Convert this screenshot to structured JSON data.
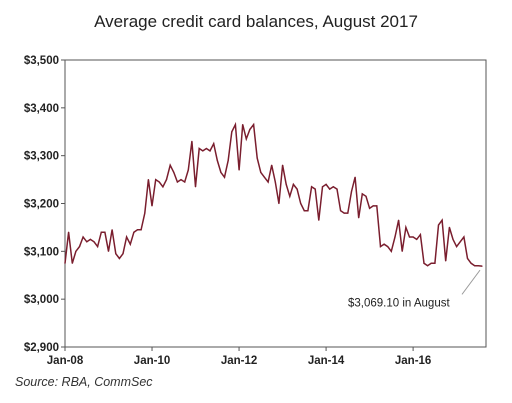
{
  "title": "Average credit card balances, August 2017",
  "source": "Source: RBA, CommSec",
  "chart_data": {
    "type": "line",
    "title": "Average credit card balances, August 2017",
    "xlabel": "",
    "ylabel": "",
    "ylim": [
      2900,
      3500
    ],
    "xlim": [
      "2008-01",
      "2017-08"
    ],
    "grid": false,
    "y_ticks": [
      "$2,900",
      "$3,000",
      "$3,100",
      "$3,200",
      "$3,300",
      "$3,400",
      "$3,500"
    ],
    "y_tick_values": [
      2900,
      3000,
      3100,
      3200,
      3300,
      3400,
      3500
    ],
    "x_ticks": [
      "Jan-08",
      "Jan-10",
      "Jan-12",
      "Jan-14",
      "Jan-16"
    ],
    "x_tick_values": [
      "2008-01",
      "2010-01",
      "2012-01",
      "2014-01",
      "2016-01"
    ],
    "series_color": "#7a1e2e",
    "annotation": {
      "text": "$3,069.10 in August",
      "x": "2017-08",
      "y": 3069.1
    },
    "series": [
      {
        "x": [
          "2008-01",
          "2008-02",
          "2008-03",
          "2008-04",
          "2008-05",
          "2008-06",
          "2008-07",
          "2008-08",
          "2008-09",
          "2008-10",
          "2008-11",
          "2008-12",
          "2009-01",
          "2009-02",
          "2009-03",
          "2009-04",
          "2009-05",
          "2009-06",
          "2009-07",
          "2009-08",
          "2009-09",
          "2009-10",
          "2009-11",
          "2009-12",
          "2010-01",
          "2010-02",
          "2010-03",
          "2010-04",
          "2010-05",
          "2010-06",
          "2010-07",
          "2010-08",
          "2010-09",
          "2010-10",
          "2010-11",
          "2010-12",
          "2011-01",
          "2011-02",
          "2011-03",
          "2011-04",
          "2011-05",
          "2011-06",
          "2011-07",
          "2011-08",
          "2011-09",
          "2011-10",
          "2011-11",
          "2011-12",
          "2012-01",
          "2012-02",
          "2012-03",
          "2012-04",
          "2012-05",
          "2012-06",
          "2012-07",
          "2012-08",
          "2012-09",
          "2012-10",
          "2012-11",
          "2012-12",
          "2013-01",
          "2013-02",
          "2013-03",
          "2013-04",
          "2013-05",
          "2013-06",
          "2013-07",
          "2013-08",
          "2013-09",
          "2013-10",
          "2013-11",
          "2013-12",
          "2014-01",
          "2014-02",
          "2014-03",
          "2014-04",
          "2014-05",
          "2014-06",
          "2014-07",
          "2014-08",
          "2014-09",
          "2014-10",
          "2014-11",
          "2014-12",
          "2015-01",
          "2015-02",
          "2015-03",
          "2015-04",
          "2015-05",
          "2015-06",
          "2015-07",
          "2015-08",
          "2015-09",
          "2015-10",
          "2015-11",
          "2015-12",
          "2016-01",
          "2016-02",
          "2016-03",
          "2016-04",
          "2016-05",
          "2016-06",
          "2016-07",
          "2016-08",
          "2016-09",
          "2016-10",
          "2016-11",
          "2016-12",
          "2017-01",
          "2017-02",
          "2017-03",
          "2017-04",
          "2017-05",
          "2017-06",
          "2017-07",
          "2017-08"
        ],
        "values": [
          3075,
          3140,
          3075,
          3100,
          3110,
          3130,
          3120,
          3125,
          3120,
          3110,
          3140,
          3140,
          3100,
          3145,
          3095,
          3085,
          3095,
          3130,
          3115,
          3140,
          3145,
          3145,
          3180,
          3250,
          3195,
          3250,
          3245,
          3235,
          3250,
          3280,
          3265,
          3245,
          3250,
          3245,
          3270,
          3330,
          3235,
          3315,
          3310,
          3315,
          3310,
          3325,
          3290,
          3265,
          3255,
          3290,
          3350,
          3365,
          3270,
          3365,
          3335,
          3355,
          3365,
          3295,
          3265,
          3255,
          3245,
          3280,
          3245,
          3200,
          3280,
          3240,
          3215,
          3240,
          3230,
          3200,
          3185,
          3185,
          3235,
          3230,
          3165,
          3235,
          3240,
          3230,
          3235,
          3230,
          3185,
          3180,
          3180,
          3225,
          3255,
          3170,
          3220,
          3215,
          3190,
          3195,
          3195,
          3110,
          3115,
          3110,
          3100,
          3130,
          3165,
          3100,
          3150,
          3130,
          3130,
          3125,
          3135,
          3075,
          3070,
          3075,
          3075,
          3155,
          3165,
          3080,
          3150,
          3125,
          3110,
          3120,
          3130,
          3085,
          3075,
          3070,
          3070,
          3069.1
        ]
      }
    ]
  }
}
